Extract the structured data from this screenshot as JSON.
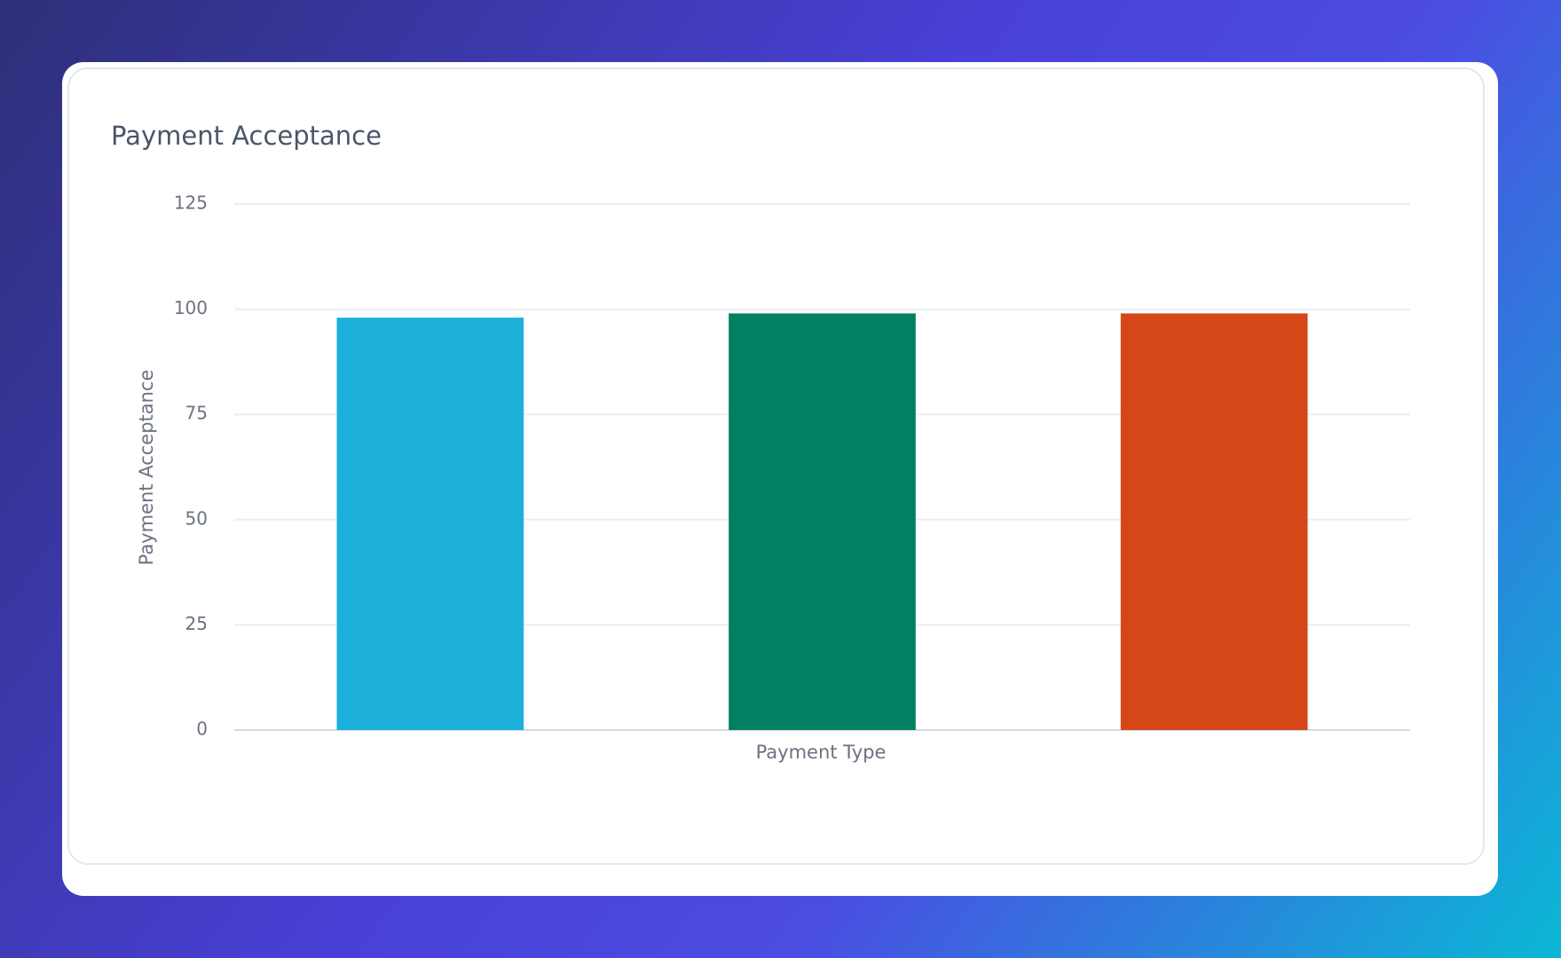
{
  "chart_data": {
    "type": "bar",
    "title": "Payment Acceptance",
    "x_label": "Payment Type",
    "y_label": "Payment Acceptance",
    "categories": [
      null,
      null,
      null
    ],
    "values": [
      98,
      99,
      99
    ],
    "colors": [
      "#1cb0da",
      "#038062",
      "#d44717"
    ],
    "ylim": [
      0,
      125
    ],
    "yticks": [
      0,
      25,
      50,
      75,
      100,
      125
    ],
    "grid": true
  }
}
